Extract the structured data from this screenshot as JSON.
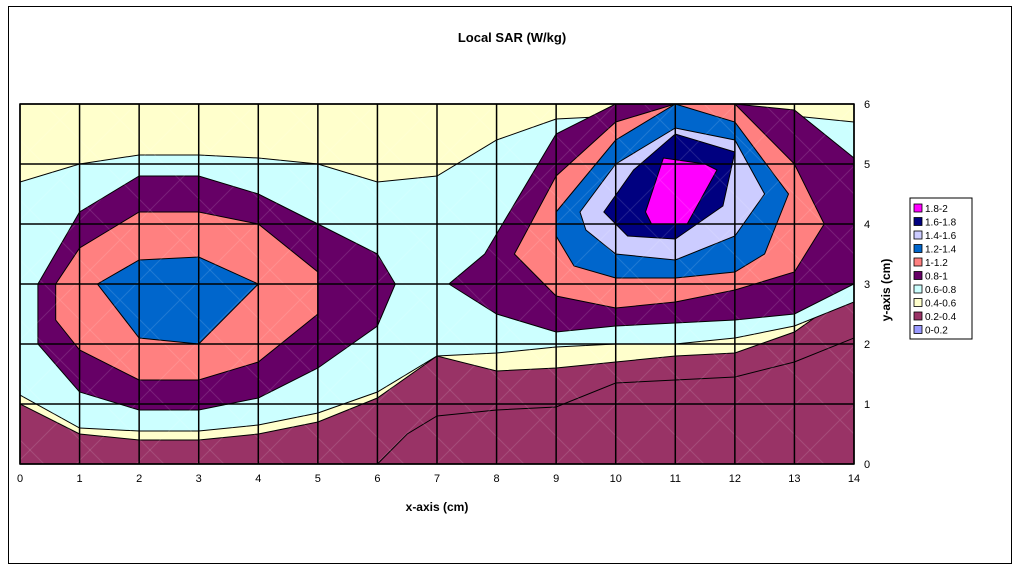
{
  "chart_data": {
    "type": "contour",
    "title": "Local SAR (W/kg)",
    "xlabel": "x-axis (cm)",
    "ylabel": "y-axis (cm)",
    "xlim": [
      0,
      14
    ],
    "ylim": [
      0,
      6
    ],
    "x_ticks": [
      "0",
      "1",
      "2",
      "3",
      "4",
      "5",
      "6",
      "7",
      "8",
      "9",
      "10",
      "11",
      "12",
      "13",
      "14"
    ],
    "y_ticks": [
      "0",
      "1",
      "2",
      "3",
      "4",
      "5",
      "6"
    ],
    "grid": true,
    "legend_position": "right",
    "levels": [
      {
        "label": "0-0.2",
        "color": "#9999ff"
      },
      {
        "label": "0.2-0.4",
        "color": "#993366"
      },
      {
        "label": "0.4-0.6",
        "color": "#ffffcc"
      },
      {
        "label": "0.6-0.8",
        "color": "#ccffff"
      },
      {
        "label": "0.8-1",
        "color": "#660066"
      },
      {
        "label": "1-1.2",
        "color": "#ff8080"
      },
      {
        "label": "1.2-1.4",
        "color": "#0066cc"
      },
      {
        "label": "1.4-1.6",
        "color": "#ccccff"
      },
      {
        "label": "1.6-1.8",
        "color": "#000080"
      },
      {
        "label": "1.8-2",
        "color": "#ff00ff"
      }
    ],
    "regions": [
      {
        "level": "0-0.2",
        "points": [
          [
            7,
            0
          ],
          [
            8,
            0.15
          ],
          [
            9,
            0.25
          ],
          [
            10,
            0.45
          ],
          [
            11,
            0.6
          ],
          [
            12,
            0.6
          ],
          [
            13,
            0.65
          ],
          [
            14,
            0.95
          ],
          [
            14,
            0
          ]
        ]
      },
      {
        "level": "0.2-0.4",
        "points": [
          [
            6,
            0
          ],
          [
            6.5,
            0.5
          ],
          [
            7,
            0.8
          ],
          [
            8,
            0.9
          ],
          [
            9,
            0.95
          ],
          [
            10,
            1.35
          ],
          [
            11,
            1.4
          ],
          [
            12,
            1.45
          ],
          [
            13,
            1.7
          ],
          [
            14,
            2.1
          ],
          [
            14,
            0
          ]
        ]
      },
      {
        "level": "0.4-0.6",
        "points": [
          [
            0,
            1
          ],
          [
            1,
            0.5
          ],
          [
            2,
            0.4
          ],
          [
            3,
            0.4
          ],
          [
            4,
            0.5
          ],
          [
            5,
            0.7
          ],
          [
            6,
            1.1
          ],
          [
            7,
            1.8
          ],
          [
            8,
            1.55
          ],
          [
            9,
            1.6
          ],
          [
            10,
            1.7
          ],
          [
            11,
            1.8
          ],
          [
            12,
            1.85
          ],
          [
            13,
            2.2
          ],
          [
            14,
            2.9
          ],
          [
            14,
            6
          ],
          [
            0,
            6
          ]
        ]
      },
      {
        "level": "0.6-0.8",
        "points": [
          [
            0,
            4.7
          ],
          [
            1,
            5.0
          ],
          [
            2,
            5.15
          ],
          [
            3,
            5.15
          ],
          [
            4,
            5.1
          ],
          [
            5,
            5.0
          ],
          [
            6,
            4.7
          ],
          [
            7,
            4.8
          ],
          [
            8,
            5.4
          ],
          [
            9,
            5.75
          ],
          [
            11,
            5.85
          ],
          [
            13,
            5.8
          ],
          [
            14,
            5.7
          ],
          [
            14,
            2.7
          ],
          [
            13,
            2.3
          ],
          [
            12,
            2.1
          ],
          [
            11,
            2.0
          ],
          [
            10,
            2.0
          ],
          [
            9,
            1.95
          ],
          [
            8,
            1.85
          ],
          [
            7,
            1.8
          ],
          [
            6,
            1.2
          ],
          [
            5,
            0.85
          ],
          [
            4,
            0.65
          ],
          [
            3,
            0.55
          ],
          [
            2,
            0.55
          ],
          [
            1,
            0.6
          ],
          [
            0,
            1.15
          ]
        ]
      },
      {
        "level": "0.8-1",
        "points": [
          [
            0.3,
            3
          ],
          [
            1,
            4.2
          ],
          [
            2,
            4.8
          ],
          [
            3,
            4.8
          ],
          [
            4,
            4.5
          ],
          [
            5,
            4.0
          ],
          [
            6,
            3.5
          ],
          [
            6.3,
            3.0
          ],
          [
            6,
            2.3
          ],
          [
            5,
            1.6
          ],
          [
            4,
            1.1
          ],
          [
            3,
            0.9
          ],
          [
            2,
            0.9
          ],
          [
            1,
            1.2
          ],
          [
            0.3,
            2
          ]
        ]
      },
      {
        "level": "0.8-1",
        "points": [
          [
            7.8,
            3.5
          ],
          [
            9,
            5.5
          ],
          [
            10,
            6
          ],
          [
            12,
            6
          ],
          [
            13,
            5.9
          ],
          [
            14,
            5.1
          ],
          [
            14,
            3
          ],
          [
            13,
            2.5
          ],
          [
            12,
            2.4
          ],
          [
            11,
            2.35
          ],
          [
            10,
            2.3
          ],
          [
            9,
            2.2
          ],
          [
            8,
            2.5
          ],
          [
            7.2,
            3
          ]
        ]
      },
      {
        "level": "1-1.2",
        "points": [
          [
            0.6,
            3
          ],
          [
            1,
            3.6
          ],
          [
            2,
            4.2
          ],
          [
            3,
            4.2
          ],
          [
            4,
            4
          ],
          [
            5,
            3.2
          ],
          [
            5,
            2.5
          ],
          [
            4,
            1.7
          ],
          [
            3,
            1.4
          ],
          [
            2,
            1.4
          ],
          [
            1,
            1.9
          ],
          [
            0.6,
            2.4
          ]
        ]
      },
      {
        "level": "1-1.2",
        "points": [
          [
            9,
            4.8
          ],
          [
            10,
            5.7
          ],
          [
            11,
            6
          ],
          [
            12,
            6
          ],
          [
            13,
            5
          ],
          [
            13.5,
            4
          ],
          [
            13,
            3.2
          ],
          [
            12,
            2.9
          ],
          [
            11,
            2.7
          ],
          [
            10,
            2.6
          ],
          [
            9,
            2.8
          ],
          [
            8.3,
            3.5
          ]
        ]
      },
      {
        "level": "1.2-1.4",
        "points": [
          [
            1.3,
            3
          ],
          [
            2,
            3.4
          ],
          [
            3,
            3.45
          ],
          [
            4,
            3.0
          ],
          [
            3,
            2.0
          ],
          [
            2,
            2.1
          ]
        ]
      },
      {
        "level": "1.2-1.4",
        "points": [
          [
            9,
            4.2
          ],
          [
            10,
            5.4
          ],
          [
            11,
            6
          ],
          [
            12,
            5.7
          ],
          [
            12.9,
            4.5
          ],
          [
            12.5,
            3.5
          ],
          [
            12,
            3.2
          ],
          [
            11,
            3.1
          ],
          [
            10,
            3.1
          ],
          [
            9.3,
            3.3
          ],
          [
            9,
            3.8
          ]
        ]
      },
      {
        "level": "1.4-1.6",
        "points": [
          [
            9.4,
            4.2
          ],
          [
            10,
            5
          ],
          [
            11,
            5.6
          ],
          [
            12,
            5.4
          ],
          [
            12.5,
            4.5
          ],
          [
            12,
            3.8
          ],
          [
            11,
            3.4
          ],
          [
            10,
            3.5
          ],
          [
            9.5,
            3.9
          ]
        ]
      },
      {
        "level": "1.6-1.8",
        "points": [
          [
            9.8,
            4.2
          ],
          [
            10.3,
            4.9
          ],
          [
            11,
            5.5
          ],
          [
            12,
            5.2
          ],
          [
            11.8,
            4.3
          ],
          [
            11,
            3.75
          ],
          [
            10.2,
            3.8
          ]
        ]
      },
      {
        "level": "1.8-2",
        "points": [
          [
            10.5,
            4.2
          ],
          [
            10.8,
            5.1
          ],
          [
            11.5,
            5.0
          ],
          [
            11.7,
            4.9
          ],
          [
            11.2,
            4.0
          ],
          [
            10.6,
            4.0
          ]
        ]
      }
    ]
  }
}
